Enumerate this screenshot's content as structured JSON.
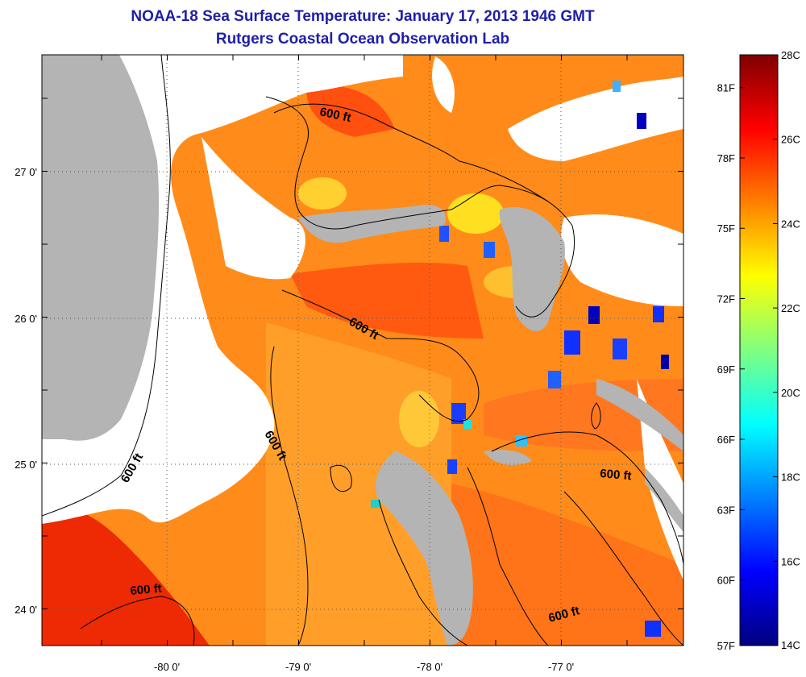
{
  "title": "NOAA-18 Sea Surface Temperature:  January 17, 2013 1946 GMT",
  "subtitle": "Rutgers Coastal Ocean Observation Lab",
  "axes": {
    "lat_labels": [
      "27 0'",
      "26 0'",
      "25 0'",
      "24 0'"
    ],
    "lon_labels": [
      "-80 0'",
      "-79 0'",
      "-78 0'",
      "-77 0'"
    ]
  },
  "contour_label": "600 ft",
  "colorbar": {
    "celsius": [
      "28C",
      "26C",
      "24C",
      "22C",
      "20C",
      "18C",
      "16C",
      "14C"
    ],
    "fahrenheit": [
      "81F",
      "78F",
      "75F",
      "72F",
      "69F",
      "66F",
      "63F",
      "60F",
      "57F"
    ],
    "colors": [
      "#800000",
      "#ff0000",
      "#ff8000",
      "#ffff00",
      "#80ff80",
      "#00ffff",
      "#0080ff",
      "#0000ff",
      "#000080"
    ]
  },
  "colors": {
    "title": "#1f1fa8",
    "land": "#b4b4b4",
    "cloud": "#ffffff",
    "warm": "#ff6a10",
    "hot": "#ee2200",
    "mid": "#ff9a20"
  }
}
